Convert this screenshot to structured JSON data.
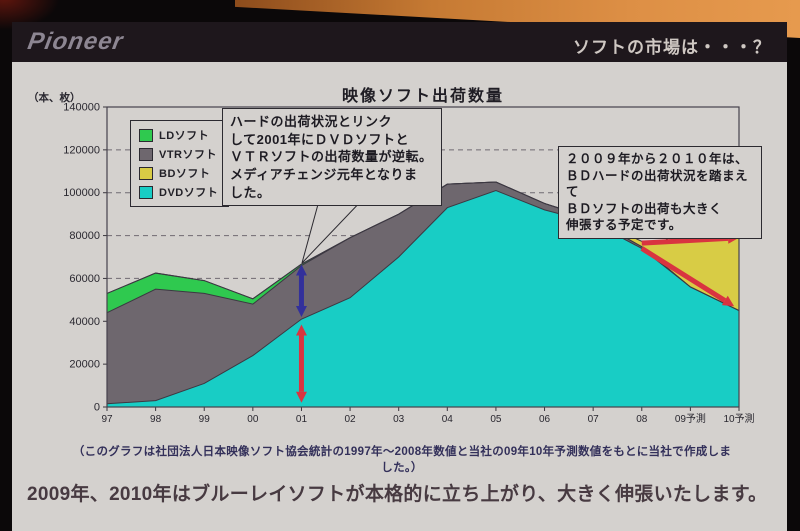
{
  "photo": {
    "brand_logo": "Pioneer",
    "screen_caption": "ソフトの市場は・・・？"
  },
  "slide": {
    "chart_title": "映像ソフト出荷数量",
    "y_axis_unit": "（本、枚）",
    "callout_media_change": "ハードの出荷状況とリンク\nして2001年にＤＶＤソフトと\nＶＴＲソフトの出荷数量が逆転。\nメディアチェンジ元年となりま\nした。",
    "callout_bd_growth": "２００９年から２０１０年は、\nＢＤハードの出荷状況を踏まえて\nＢＤソフトの出荷も大きく\n伸張する予定です。",
    "source_note": "（このグラフは社団法人日本映像ソフト協会統計の1997年～2008年数値と当社の09年10年予測数値をもとに当社で作成しました。）",
    "statement": "2009年、2010年はブルーレイソフトが本格的に立ち上がり、大きく伸張いたします。"
  },
  "chart_data": {
    "type": "area",
    "stacked": true,
    "title": "映像ソフト出荷数量",
    "ylabel": "（本、枚）",
    "ylim": [
      0,
      140000
    ],
    "ytick_step": 20000,
    "grid": "horizontal-dashed",
    "legend_position": "top-left-inside",
    "categories": [
      "97",
      "98",
      "99",
      "00",
      "01",
      "02",
      "03",
      "04",
      "05",
      "06",
      "07",
      "08",
      "09予測",
      "10予測"
    ],
    "series": [
      {
        "name": "DVDソフト",
        "key": "dvd",
        "color": "#18cdc5",
        "values": [
          1500,
          3000,
          11000,
          24000,
          41000,
          51000,
          70000,
          93000,
          101000,
          92000,
          86000,
          74000,
          56000,
          45000
        ]
      },
      {
        "name": "VTRソフト",
        "key": "vtr",
        "color": "#6e676e",
        "values": [
          42500,
          52000,
          42000,
          24000,
          25000,
          28000,
          20000,
          11000,
          4000,
          3000,
          1500,
          800,
          0,
          0
        ]
      },
      {
        "name": "LDソフト",
        "key": "ld",
        "color": "#2fc94f",
        "values": [
          9000,
          7500,
          6000,
          2500,
          700,
          0,
          0,
          0,
          0,
          0,
          0,
          0,
          0,
          0
        ]
      },
      {
        "name": "BDソフト",
        "key": "bd",
        "color": "#d8cc45",
        "values": [
          0,
          0,
          0,
          0,
          0,
          0,
          0,
          0,
          0,
          0,
          500,
          2500,
          22000,
          35000
        ]
      }
    ],
    "legend_order": [
      "ld",
      "vtr",
      "bd",
      "dvd"
    ],
    "annotations": {
      "arrows": [
        {
          "color": "#32309b",
          "double": true,
          "from": [
            4,
            66500
          ],
          "to": [
            4,
            42000
          ]
        },
        {
          "color": "#d93440",
          "double": true,
          "from": [
            4,
            38500
          ],
          "to": [
            4,
            2000
          ]
        },
        {
          "color": "#d93440",
          "double": false,
          "from": [
            11,
            76500
          ],
          "to": [
            13,
            79000
          ]
        },
        {
          "color": "#d93440",
          "double": false,
          "from": [
            11,
            74000
          ],
          "to": [
            12.9,
            47000
          ]
        }
      ]
    }
  }
}
